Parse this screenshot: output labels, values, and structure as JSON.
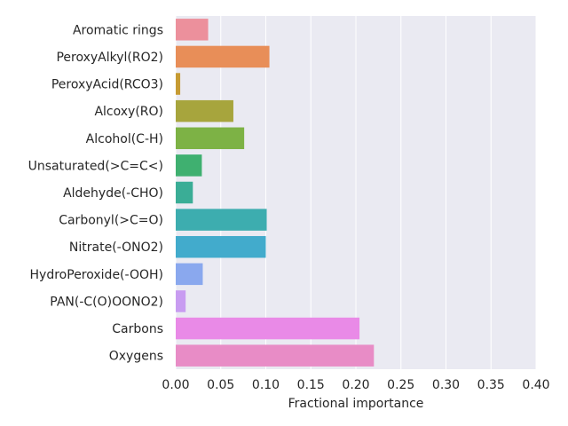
{
  "chart_data": {
    "type": "bar",
    "orientation": "horizontal",
    "categories": [
      "Aromatic rings",
      "PeroxyAlkyl(RO2)",
      "PeroxyAcid(RCO3)",
      "Alcoxy(RO)",
      "Alcohol(C-H)",
      "Unsaturated(>C=C<)",
      "Aldehyde(-CHO)",
      "Carbonyl(>C=O)",
      "Nitrate(-ONO2)",
      "HydroPeroxide(-OOH)",
      "PAN(-C(O)OONO2)",
      "Carbons",
      "Oxygens"
    ],
    "values": [
      0.036,
      0.104,
      0.005,
      0.064,
      0.076,
      0.029,
      0.019,
      0.101,
      0.1,
      0.03,
      0.011,
      0.204,
      0.22
    ],
    "colors": [
      "#ec909c",
      "#e88e58",
      "#c69b33",
      "#a7a53d",
      "#7db245",
      "#3fb070",
      "#3aad96",
      "#3dadaf",
      "#42abcc",
      "#8aa8ee",
      "#c89cf1",
      "#e98ae7",
      "#e88cc6"
    ],
    "title": "",
    "xlabel": "Fractional importance",
    "ylabel": "",
    "xlim": [
      0.0,
      0.4
    ],
    "xticks": [
      "0.00",
      "0.05",
      "0.10",
      "0.15",
      "0.20",
      "0.25",
      "0.30",
      "0.35",
      "0.40"
    ],
    "grid": true,
    "background": "#eaeaf2"
  }
}
